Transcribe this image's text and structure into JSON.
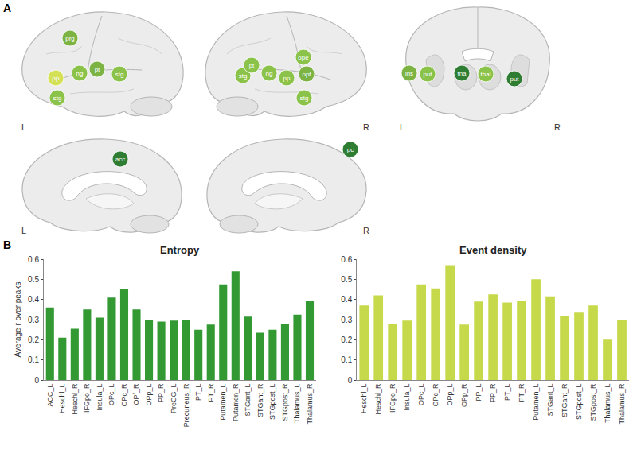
{
  "panel_a": {
    "label": "A",
    "views": [
      {
        "hemisphere": "L",
        "markers": [
          {
            "text": "prg",
            "color": "#7cb342"
          },
          {
            "text": "pp",
            "color": "#d4e157"
          },
          {
            "text": "hg",
            "color": "#8bc34a"
          },
          {
            "text": "pt",
            "color": "#7cb342"
          },
          {
            "text": "stg",
            "color": "#8bc34a"
          },
          {
            "text": "stg",
            "color": "#8bc34a"
          }
        ]
      },
      {
        "hemisphere": "R",
        "markers": [
          {
            "text": "stg",
            "color": "#8bc34a"
          },
          {
            "text": "pt",
            "color": "#8bc34a"
          },
          {
            "text": "hg",
            "color": "#8bc34a"
          },
          {
            "text": "pp",
            "color": "#8bc34a"
          },
          {
            "text": "opf",
            "color": "#7cb342"
          },
          {
            "text": "ope",
            "color": "#8bc34a"
          },
          {
            "text": "stg",
            "color": "#8bc34a"
          }
        ]
      },
      {
        "hemisphere": [
          "L",
          "R"
        ],
        "markers": [
          {
            "text": "ins",
            "color": "#7cb342"
          },
          {
            "text": "put",
            "color": "#8bc34a"
          },
          {
            "text": "tha",
            "color": "#2e7d32"
          },
          {
            "text": "thal",
            "color": "#8bc34a"
          },
          {
            "text": "put",
            "color": "#2e7d32"
          }
        ]
      },
      {
        "hemisphere": "L",
        "markers": [
          {
            "text": "acc",
            "color": "#2e7d32"
          }
        ]
      },
      {
        "hemisphere": "R",
        "markers": [
          {
            "text": "pc",
            "color": "#2e7d32"
          }
        ]
      }
    ]
  },
  "panel_b": {
    "label": "B"
  },
  "chart_data": [
    {
      "type": "bar",
      "title": "Entropy",
      "y_label": "Average r over peaks",
      "color": "#339933",
      "categories": [
        "ACC_L",
        "Heschl_L",
        "Heschl_R",
        "IFGpo_R",
        "Insula_L",
        "OPc_L",
        "OPc_R",
        "OPf_R",
        "OPp_L",
        "PP_R",
        "PreCG_L",
        "Precuneus_R",
        "PT_L",
        "PT_R",
        "Putamen_L",
        "Putamen_R",
        "STGant_L",
        "STGant_R",
        "STGpost_L",
        "STGpost_R",
        "Thalamus_L",
        "Thalamus_R"
      ],
      "values": [
        0.36,
        0.21,
        0.255,
        0.35,
        0.31,
        0.41,
        0.45,
        0.35,
        0.3,
        0.29,
        0.295,
        0.3,
        0.25,
        0.275,
        0.475,
        0.54,
        0.315,
        0.235,
        0.25,
        0.28,
        0.325,
        0.395
      ],
      "ylim": [
        0,
        0.6
      ],
      "yticks": [
        0,
        0.1,
        0.2,
        0.3,
        0.4,
        0.5,
        0.6
      ],
      "grid": false
    },
    {
      "type": "bar",
      "title": "Event density",
      "color": "#c6d94a",
      "categories": [
        "Heschl_L",
        "Heschl_R",
        "IFGpo_R",
        "Insula_L",
        "OPc_L",
        "OPc_R",
        "OPp_L",
        "OPp_R",
        "PP_L",
        "PP_R",
        "PT_L",
        "PT_R",
        "Putamen_L",
        "STGant_L",
        "STGant_R",
        "STGpost_L",
        "STGpost_R",
        "Thalamus_L",
        "Thalamus_R"
      ],
      "values": [
        0.37,
        0.42,
        0.28,
        0.295,
        0.475,
        0.455,
        0.57,
        0.275,
        0.39,
        0.425,
        0.385,
        0.395,
        0.5,
        0.415,
        0.32,
        0.335,
        0.37,
        0.2,
        0.3
      ],
      "ylim": [
        0,
        0.6
      ],
      "yticks": [
        0,
        0.1,
        0.2,
        0.3,
        0.4,
        0.5,
        0.6
      ],
      "grid": false
    }
  ]
}
